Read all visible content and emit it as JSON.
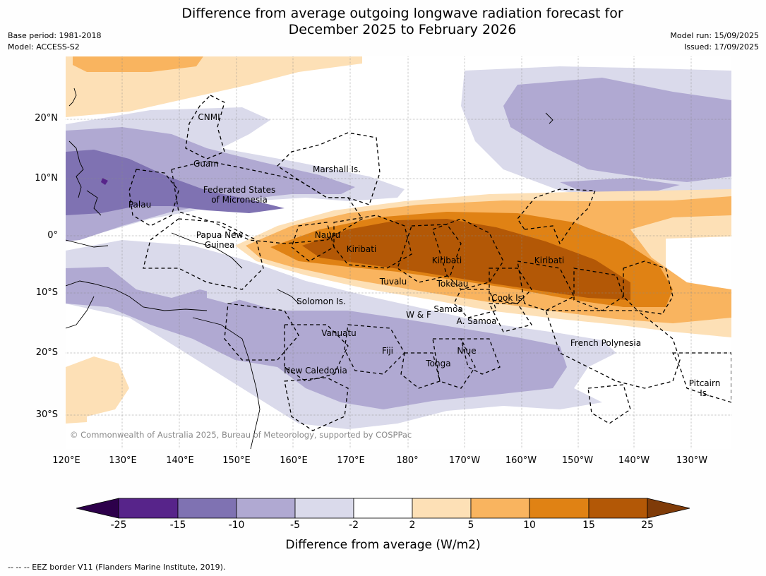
{
  "title_line1": "Difference from average outgoing longwave radiation forecast for",
  "title_line2": "December 2025 to February 2026",
  "base_period": "Base period: 1981-2018",
  "model": "Model: ACCESS-S2",
  "model_run": "Model run: 15/09/2025",
  "issued": "Issued: 17/09/2025",
  "lat_labels": [
    "20°N",
    "10°N",
    "0°",
    "10°S",
    "20°S",
    "30°S"
  ],
  "lon_labels": [
    "120°E",
    "130°E",
    "140°E",
    "150°E",
    "160°E",
    "170°E",
    "180°",
    "170°W",
    "160°W",
    "150°W",
    "140°W",
    "130°W"
  ],
  "places": {
    "cnmi": "CNMI",
    "guam": "Guam",
    "marshall": "Marshall Is.",
    "fsm1": "Federated States",
    "fsm2": "of Micronesia",
    "palau": "Palau",
    "png1": "Papua New",
    "png2": "Guinea",
    "nauru": "Nauru",
    "kiribati1": "Kiribati",
    "kiribati2": "Kiribati",
    "kiribati3": "Kiribati",
    "tuvalu": "Tuvalu",
    "tokelau": "Tokelau",
    "cook": "Cook Is.",
    "solomon": "Solomon Is.",
    "samoa": "Samoa",
    "wf": "W & F",
    "asamoa": "A. Samoa",
    "vanuatu": "Vanuatu",
    "fiji": "Fiji",
    "niue": "Niue",
    "tonga": "Tonga",
    "newcal": "New Caledonia",
    "frpoly": "French Polynesia",
    "pitcairn1": "Pitcairn",
    "pitcairn2": "Is."
  },
  "copyright": "© Commonwealth of Australia 2025, Bureau of Meteorology, supported by COSPPac",
  "colorbar": {
    "ticks": [
      "-25",
      "-15",
      "-10",
      "-5",
      "-2",
      "2",
      "5",
      "10",
      "15",
      "25"
    ],
    "colors": [
      "#57248a",
      "#7f72b2",
      "#b0a9d2",
      "#dadaeb",
      "#ffffff",
      "#fde0b6",
      "#f9b45f",
      "#e08214",
      "#b35806"
    ],
    "under_color": "#2d004b",
    "over_color": "#7f3b08",
    "label": "Difference from average (W/m2)"
  },
  "footnote": "--  --  -- EEZ border V11 (Flanders Marine Institute, 2019)."
}
